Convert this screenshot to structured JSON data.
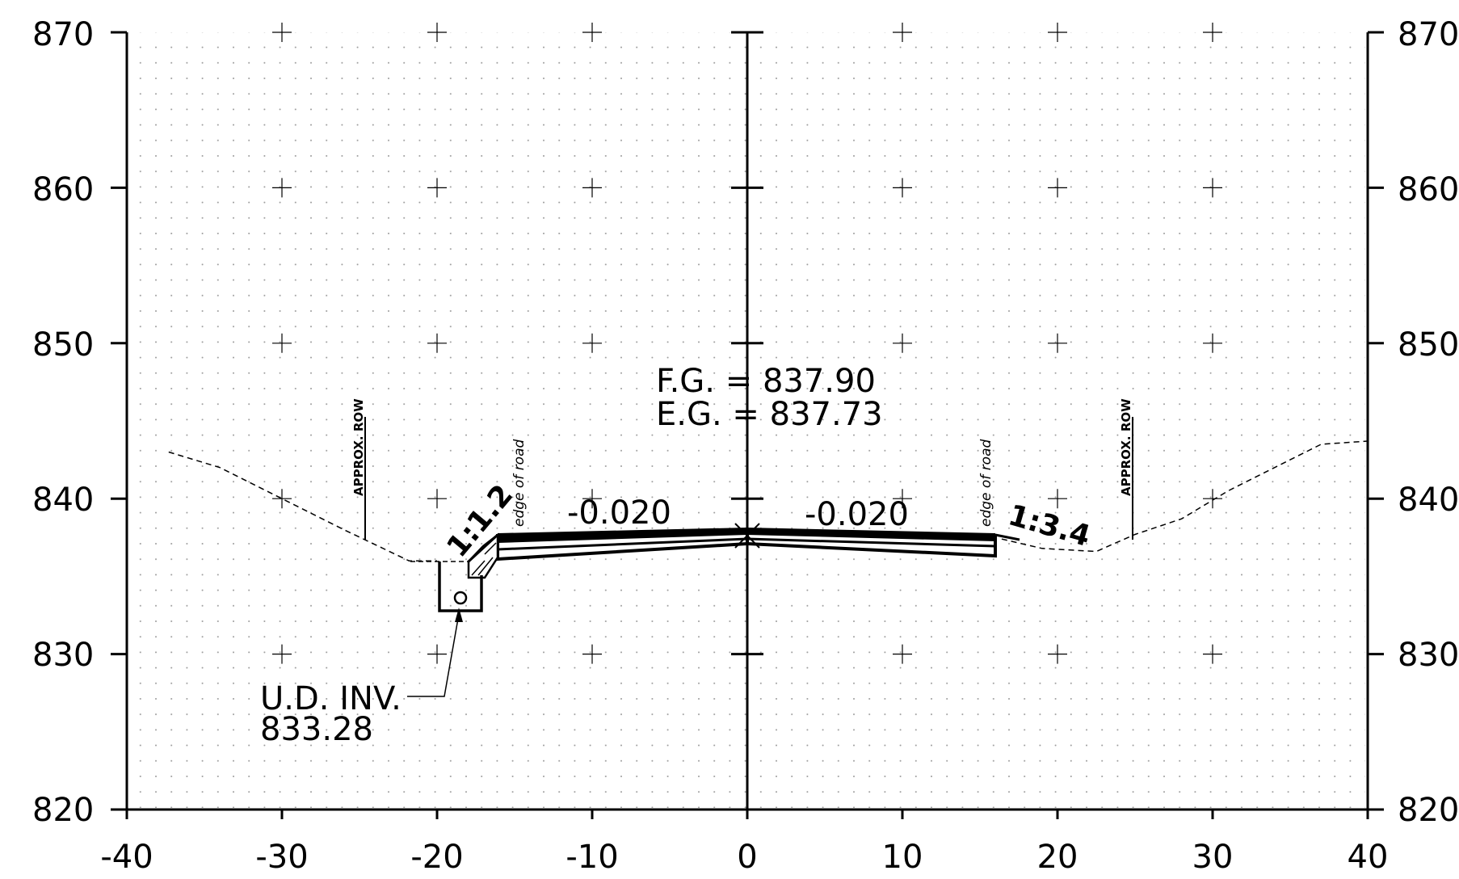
{
  "chart_data": {
    "type": "cross-section",
    "x_ticks": [
      "-40",
      "-30",
      "-20",
      "-10",
      "0",
      "10",
      "20",
      "30",
      "40"
    ],
    "y_ticks_left": [
      "820",
      "830",
      "840",
      "850",
      "860",
      "870"
    ],
    "y_ticks_right": [
      "820",
      "830",
      "840",
      "850",
      "860",
      "870"
    ],
    "xlim": [
      -40,
      40
    ],
    "ylim": [
      820,
      870
    ],
    "grid": "dot grid with + markers every 10 units",
    "finished_grade": {
      "label_line1": "F.G. = 837.90",
      "label_line2": "E.G. = 837.73"
    },
    "slopes": [
      {
        "label": "-0.020",
        "side": "left"
      },
      {
        "label": "-0.020",
        "side": "right"
      }
    ],
    "side_slopes": [
      {
        "label": "1:1.2",
        "side": "left"
      },
      {
        "label": "1:3.4",
        "side": "right"
      }
    ],
    "edge_notes": [
      {
        "label": "edge of road",
        "side": "left"
      },
      {
        "label": "edge of road",
        "side": "right"
      }
    ],
    "row_markers": [
      {
        "label": "APPROX. ROW",
        "side": "left"
      },
      {
        "label": "APPROX. ROW",
        "side": "right"
      }
    ],
    "underdrain": {
      "label_line1": "U.D. INV.",
      "label_line2": "833.28"
    },
    "existing_ground": [
      [
        -37.3,
        843.0
      ],
      [
        -34.0,
        842.0
      ],
      [
        -30.0,
        840.0
      ],
      [
        -26.0,
        838.0
      ],
      [
        -21.8,
        836.0
      ],
      [
        -20.0,
        836.0
      ]
    ],
    "existing_ground_right": [
      [
        16.4,
        837.4
      ],
      [
        19.0,
        836.8
      ],
      [
        22.5,
        836.6
      ],
      [
        25.0,
        837.7
      ],
      [
        28.0,
        838.7
      ],
      [
        31.0,
        840.5
      ],
      [
        33.0,
        841.5
      ],
      [
        37.0,
        843.5
      ],
      [
        40.0,
        843.7
      ]
    ]
  }
}
